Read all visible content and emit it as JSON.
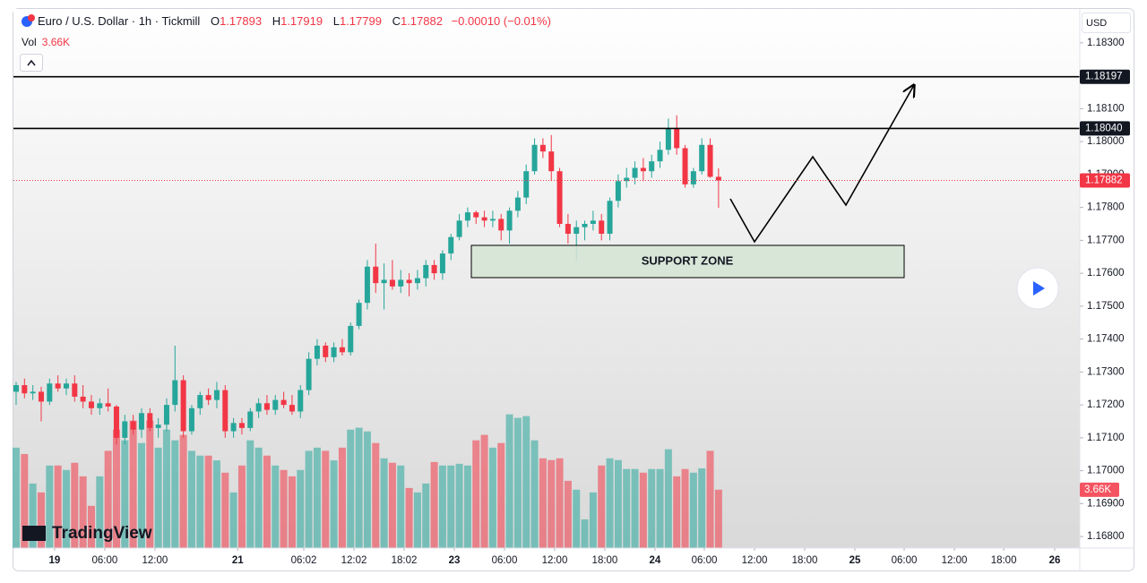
{
  "chart_data": {
    "type": "candlestick",
    "title": "Euro / U.S. Dollar · 1h · Tickmill",
    "ohlc_labels": {
      "o": "O",
      "h": "H",
      "l": "L",
      "c": "C"
    },
    "ohlc_values": {
      "o": "1.17893",
      "h": "1.17919",
      "l": "1.17799",
      "c": "1.17882"
    },
    "change": "−0.00010 (−0.01%)",
    "volume_label": "Vol",
    "volume_value": "3.66K",
    "currency": "USD",
    "annotation": "SUPPORT ZONE",
    "watermark": "TradingView",
    "up_color": "#26a69a",
    "down_color": "#f23645",
    "ylim": [
      1.16765,
      1.18403
    ],
    "xlim": [
      -0.32,
      127.2
    ],
    "vlim": [
      0,
      10000
    ],
    "yticks": [
      {
        "value": 1.183,
        "label": "1.18300"
      },
      {
        "value": 1.181,
        "label": "1.18100"
      },
      {
        "value": 1.18,
        "label": "1.18000"
      },
      {
        "value": 1.179,
        "label": "1.17900"
      },
      {
        "value": 1.178,
        "label": "1.17800"
      },
      {
        "value": 1.177,
        "label": "1.17700"
      },
      {
        "value": 1.176,
        "label": "1.17600"
      },
      {
        "value": 1.175,
        "label": "1.17500"
      },
      {
        "value": 1.174,
        "label": "1.17400"
      },
      {
        "value": 1.173,
        "label": "1.17300"
      },
      {
        "value": 1.172,
        "label": "1.17200"
      },
      {
        "value": 1.171,
        "label": "1.17100"
      },
      {
        "value": 1.17,
        "label": "1.17000"
      },
      {
        "value": 1.169,
        "label": "1.16900"
      },
      {
        "value": 1.168,
        "label": "1.16800"
      }
    ],
    "xticks": [
      {
        "value": 4.6,
        "label": "19"
      },
      {
        "value": 10.6,
        "label": "06:00"
      },
      {
        "value": 16.6,
        "label": "12:00"
      },
      {
        "value": 26.5,
        "label": "21"
      },
      {
        "value": 34.4,
        "label": "06:02"
      },
      {
        "value": 40.4,
        "label": "12:02"
      },
      {
        "value": 46.4,
        "label": "18:02"
      },
      {
        "value": 52.4,
        "label": "23"
      },
      {
        "value": 58.4,
        "label": "06:00"
      },
      {
        "value": 64.4,
        "label": "12:00"
      },
      {
        "value": 70.4,
        "label": "18:00"
      },
      {
        "value": 76.4,
        "label": "24"
      },
      {
        "value": 82.3,
        "label": "06:00"
      },
      {
        "value": 88.3,
        "label": "12:00"
      },
      {
        "value": 94.3,
        "label": "18:00"
      },
      {
        "value": 100.3,
        "label": "25"
      },
      {
        "value": 106.2,
        "label": "06:00"
      },
      {
        "value": 112.2,
        "label": "12:00"
      },
      {
        "value": 118.1,
        "label": "18:00"
      },
      {
        "value": 124.2,
        "label": "26"
      }
    ],
    "levels": [
      {
        "value": 1.18197,
        "label": "1.18197"
      },
      {
        "value": 1.1804,
        "label": "1.18040"
      }
    ],
    "last_price": {
      "value": 1.17882,
      "label": "1.17882"
    },
    "open": [
      1.1724,
      1.1726,
      1.17235,
      1.1724,
      1.1721,
      1.17265,
      1.1725,
      1.17265,
      1.17225,
      1.1721,
      1.1719,
      1.17205,
      1.17195,
      1.171,
      1.1715,
      1.17125,
      1.17175,
      1.1713,
      1.1714,
      1.172,
      1.17275,
      1.1712,
      1.1719,
      1.1723,
      1.17215,
      1.17245,
      1.1712,
      1.17145,
      1.1713,
      1.1718,
      1.17205,
      1.17185,
      1.17215,
      1.172,
      1.1718,
      1.17245,
      1.1734,
      1.1738,
      1.17345,
      1.17375,
      1.1736,
      1.1744,
      1.1751,
      1.1762,
      1.1757,
      1.1758,
      1.1756,
      1.1758,
      1.1757,
      1.17585,
      1.17625,
      1.176,
      1.1766,
      1.1771,
      1.1776,
      1.17785,
      1.1777,
      1.1776,
      1.17765,
      1.1773,
      1.1779,
      1.1783,
      1.1791,
      1.1799,
      1.1797,
      1.1791,
      1.1775,
      1.1772,
      1.1774,
      1.1775,
      1.1776,
      1.1772,
      1.1782,
      1.1788,
      1.1789,
      1.1792,
      1.1791,
      1.1794,
      1.17975,
      1.1804,
      1.1798,
      1.1787,
      1.1791,
      1.1799,
      1.17893
    ],
    "high": [
      1.1727,
      1.1728,
      1.1726,
      1.17255,
      1.1728,
      1.1729,
      1.1728,
      1.1729,
      1.1726,
      1.1723,
      1.1722,
      1.1725,
      1.172,
      1.1717,
      1.1717,
      1.1719,
      1.1719,
      1.1716,
      1.1722,
      1.1738,
      1.1729,
      1.172,
      1.1724,
      1.1725,
      1.1727,
      1.1726,
      1.1716,
      1.1716,
      1.1719,
      1.1722,
      1.1723,
      1.1723,
      1.1724,
      1.1723,
      1.1726,
      1.1736,
      1.174,
      1.1739,
      1.1739,
      1.174,
      1.1745,
      1.1752,
      1.1764,
      1.1769,
      1.1763,
      1.1764,
      1.1761,
      1.176,
      1.1761,
      1.1764,
      1.1764,
      1.1767,
      1.1772,
      1.1778,
      1.178,
      1.1779,
      1.1779,
      1.1779,
      1.1778,
      1.178,
      1.1785,
      1.1793,
      1.1801,
      1.1801,
      1.1802,
      1.1792,
      1.1778,
      1.1776,
      1.1776,
      1.1779,
      1.1778,
      1.1783,
      1.179,
      1.1792,
      1.1794,
      1.1795,
      1.1796,
      1.18,
      1.1807,
      1.1808,
      1.1799,
      1.1792,
      1.1801,
      1.1801,
      1.17919
    ],
    "low": [
      1.172,
      1.1722,
      1.17215,
      1.1715,
      1.172,
      1.1724,
      1.1723,
      1.1721,
      1.1719,
      1.1717,
      1.1717,
      1.1718,
      1.1708,
      1.1708,
      1.1711,
      1.171,
      1.1712,
      1.171,
      1.1712,
      1.1718,
      1.171,
      1.1711,
      1.1717,
      1.172,
      1.1719,
      1.171,
      1.171,
      1.1711,
      1.1712,
      1.1716,
      1.1717,
      1.1717,
      1.1719,
      1.1717,
      1.1716,
      1.1723,
      1.1732,
      1.1733,
      1.1733,
      1.1735,
      1.1735,
      1.1743,
      1.1749,
      1.1754,
      1.1749,
      1.1755,
      1.1754,
      1.1753,
      1.1755,
      1.1756,
      1.1758,
      1.1758,
      1.1764,
      1.177,
      1.1774,
      1.1775,
      1.1774,
      1.1774,
      1.177,
      1.1769,
      1.1777,
      1.1781,
      1.179,
      1.1795,
      1.1788,
      1.1774,
      1.1769,
      1.1764,
      1.177,
      1.1773,
      1.177,
      1.177,
      1.178,
      1.1786,
      1.1787,
      1.1788,
      1.1789,
      1.1792,
      1.1796,
      1.1796,
      1.1786,
      1.1786,
      1.179,
      1.1789,
      1.17799
    ],
    "close": [
      1.1726,
      1.17235,
      1.1724,
      1.1721,
      1.17265,
      1.1725,
      1.17265,
      1.17225,
      1.1721,
      1.1719,
      1.17205,
      1.17195,
      1.171,
      1.1715,
      1.17125,
      1.17175,
      1.1713,
      1.1714,
      1.172,
      1.17275,
      1.1712,
      1.1719,
      1.1723,
      1.17215,
      1.17245,
      1.1712,
      1.17145,
      1.1713,
      1.1718,
      1.17205,
      1.17185,
      1.17215,
      1.172,
      1.1718,
      1.17245,
      1.1734,
      1.1738,
      1.17345,
      1.17375,
      1.1736,
      1.1744,
      1.1751,
      1.1762,
      1.1757,
      1.1758,
      1.1756,
      1.1758,
      1.1757,
      1.17585,
      1.17625,
      1.176,
      1.1766,
      1.1771,
      1.1776,
      1.17785,
      1.1777,
      1.1776,
      1.17765,
      1.1773,
      1.1779,
      1.1783,
      1.1791,
      1.1799,
      1.1797,
      1.1791,
      1.1775,
      1.1772,
      1.1774,
      1.1775,
      1.1776,
      1.1772,
      1.1782,
      1.1788,
      1.1789,
      1.1792,
      1.1791,
      1.1794,
      1.17975,
      1.1804,
      1.1798,
      1.1787,
      1.1791,
      1.1799,
      1.17893,
      1.17882
    ],
    "volume": [
      6300,
      5900,
      4050,
      3490,
      5180,
      5180,
      4900,
      5350,
      4500,
      2650,
      4500,
      6100,
      7430,
      6760,
      8000,
      6590,
      8000,
      6300,
      7430,
      6760,
      7100,
      6100,
      5800,
      5800,
      5500,
      4730,
      3490,
      5180,
      6760,
      6300,
      5800,
      5180,
      4900,
      4500,
      4900,
      6100,
      6300,
      6100,
      5500,
      6300,
      7430,
      7550,
      7320,
      6590,
      5630,
      5350,
      5180,
      3770,
      3490,
      4050,
      5400,
      5180,
      5180,
      5290,
      5180,
      6760,
      7100,
      6300,
      6590,
      8390,
      8170,
      8280,
      6760,
      5630,
      5520,
      5630,
      4220,
      3660,
      1800,
      3490,
      5180,
      5630,
      5520,
      4960,
      4960,
      4730,
      4960,
      4960,
      6200,
      4500,
      4960,
      4730,
      5000,
      6100,
      3660
    ]
  }
}
